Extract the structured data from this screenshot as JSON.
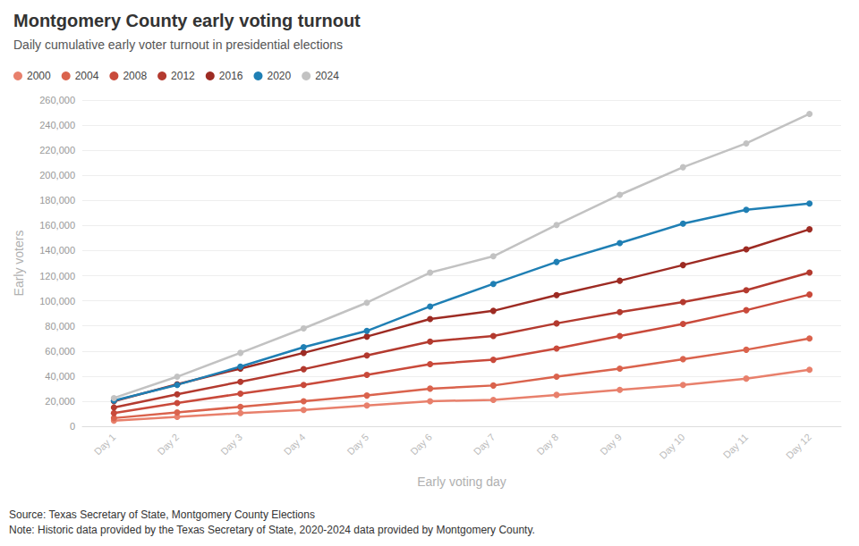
{
  "chart_data": {
    "type": "line",
    "title": "Montgomery County early voting turnout",
    "subtitle": "Daily cumulative early voter turnout in presidential elections",
    "x_label": "Early voting day",
    "y_label": "Early voters",
    "source": "Source: Texas Secretary of State, Montgomery County Elections",
    "note": "Note: Historic data provided by the Texas Secretary of State, 2020-2024 data provided by Montgomery County.",
    "categories": [
      "Day 1",
      "Day 2",
      "Day 3",
      "Day 4",
      "Day 5",
      "Day 6",
      "Day 7",
      "Day 8",
      "Day 9",
      "Day 10",
      "Day 11",
      "Day 12"
    ],
    "series": [
      {
        "name": "2000",
        "color": "#e8806c",
        "values": [
          4500,
          7500,
          10500,
          13000,
          16500,
          20000,
          21000,
          25000,
          29000,
          33000,
          38000,
          45000
        ]
      },
      {
        "name": "2004",
        "color": "#da634d",
        "values": [
          6500,
          11000,
          15500,
          20000,
          24500,
          30000,
          32500,
          39500,
          46000,
          53500,
          61000,
          70000
        ]
      },
      {
        "name": "2008",
        "color": "#c94a3b",
        "values": [
          10500,
          18500,
          26000,
          33000,
          41000,
          49500,
          53000,
          62000,
          72000,
          81500,
          92500,
          105000
        ]
      },
      {
        "name": "2012",
        "color": "#b33a2f",
        "values": [
          15000,
          25500,
          35500,
          45500,
          56500,
          67500,
          72000,
          82000,
          91000,
          99000,
          108500,
          122500
        ]
      },
      {
        "name": "2016",
        "color": "#9d2b23",
        "values": [
          20000,
          33500,
          46000,
          58500,
          71500,
          85500,
          92000,
          104500,
          116000,
          128500,
          141000,
          157000
        ]
      },
      {
        "name": "2020",
        "color": "#1f7fb4",
        "values": [
          20500,
          33000,
          47500,
          63000,
          76000,
          95500,
          113500,
          131000,
          146000,
          161500,
          172500,
          177500
        ]
      },
      {
        "name": "2024",
        "color": "#c2c2c2",
        "values": [
          22500,
          39500,
          58500,
          78000,
          98500,
          122500,
          135500,
          160500,
          184500,
          206500,
          225500,
          249000
        ]
      }
    ],
    "ylim": [
      0,
      260000
    ],
    "yticks": [
      0,
      {
        "value": 20000,
        "label": "20,000"
      },
      {
        "value": 40000,
        "label": "40,000"
      },
      {
        "value": 60000,
        "label": "60,000"
      },
      {
        "value": 80000,
        "label": "80,000"
      },
      {
        "value": 100000,
        "label": "100,000"
      },
      {
        "value": 120000,
        "label": "120,000"
      },
      {
        "value": 140000,
        "label": "140,000"
      },
      {
        "value": 160000,
        "label": "160,000"
      },
      {
        "value": 180000,
        "label": "180,000"
      },
      {
        "value": 200000,
        "label": "200,000"
      },
      {
        "value": 220000,
        "label": "220,000"
      },
      {
        "value": 240000,
        "label": "240,000"
      },
      {
        "value": 260000,
        "label": "260,000"
      }
    ],
    "grid": true,
    "legend": "top-left",
    "marker": "circle"
  }
}
